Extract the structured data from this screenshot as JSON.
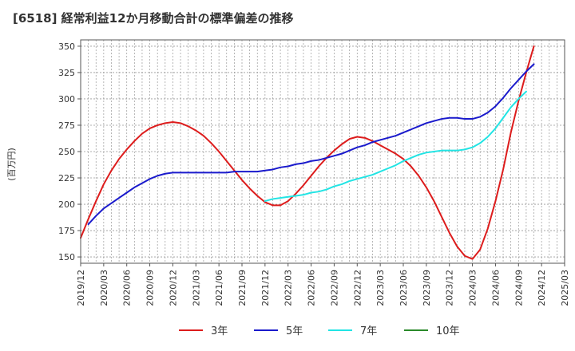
{
  "chart_data": {
    "type": "line",
    "title": "[6518]  経常利益12か月移動合計の標準偏差の推移",
    "ylabel": "(百万円)",
    "xlabel": "",
    "ylim": [
      144,
      356
    ],
    "xlim": [
      "2019-12",
      "2025-03"
    ],
    "y_ticks": [
      150,
      175,
      200,
      225,
      250,
      275,
      300,
      325,
      350
    ],
    "x_ticks": [
      "2019/12",
      "2020/03",
      "2020/06",
      "2020/09",
      "2020/12",
      "2021/03",
      "2021/06",
      "2021/09",
      "2021/12",
      "2022/03",
      "2022/06",
      "2022/09",
      "2022/12",
      "2023/03",
      "2023/06",
      "2023/09",
      "2023/12",
      "2024/03",
      "2024/06",
      "2024/09",
      "2024/12",
      "2025/03"
    ],
    "grid": true,
    "legend_position": "bottom",
    "series": [
      {
        "name": "3年",
        "color": "#dd1c1c",
        "points": [
          [
            "2019-12",
            168
          ],
          [
            "2020-01",
            186
          ],
          [
            "2020-02",
            203
          ],
          [
            "2020-03",
            219
          ],
          [
            "2020-04",
            232
          ],
          [
            "2020-05",
            243
          ],
          [
            "2020-06",
            252
          ],
          [
            "2020-07",
            260
          ],
          [
            "2020-08",
            267
          ],
          [
            "2020-09",
            272
          ],
          [
            "2020-10",
            275
          ],
          [
            "2020-11",
            277
          ],
          [
            "2020-12",
            278
          ],
          [
            "2021-01",
            277
          ],
          [
            "2021-02",
            274
          ],
          [
            "2021-03",
            270
          ],
          [
            "2021-04",
            265
          ],
          [
            "2021-05",
            258
          ],
          [
            "2021-06",
            250
          ],
          [
            "2021-07",
            241
          ],
          [
            "2021-08",
            232
          ],
          [
            "2021-09",
            223
          ],
          [
            "2021-10",
            215
          ],
          [
            "2021-11",
            208
          ],
          [
            "2021-12",
            202
          ],
          [
            "2022-01",
            199
          ],
          [
            "2022-02",
            199
          ],
          [
            "2022-03",
            203
          ],
          [
            "2022-04",
            210
          ],
          [
            "2022-05",
            218
          ],
          [
            "2022-06",
            227
          ],
          [
            "2022-07",
            236
          ],
          [
            "2022-08",
            244
          ],
          [
            "2022-09",
            251
          ],
          [
            "2022-10",
            257
          ],
          [
            "2022-11",
            262
          ],
          [
            "2022-12",
            264
          ],
          [
            "2023-01",
            263
          ],
          [
            "2023-02",
            260
          ],
          [
            "2023-03",
            256
          ],
          [
            "2023-04",
            252
          ],
          [
            "2023-05",
            248
          ],
          [
            "2023-06",
            243
          ],
          [
            "2023-07",
            236
          ],
          [
            "2023-08",
            227
          ],
          [
            "2023-09",
            216
          ],
          [
            "2023-10",
            203
          ],
          [
            "2023-11",
            188
          ],
          [
            "2023-12",
            173
          ],
          [
            "2024-01",
            160
          ],
          [
            "2024-02",
            151
          ],
          [
            "2024-03",
            148
          ],
          [
            "2024-04",
            157
          ],
          [
            "2024-05",
            177
          ],
          [
            "2024-06",
            203
          ],
          [
            "2024-07",
            233
          ],
          [
            "2024-08",
            268
          ],
          [
            "2024-09",
            298
          ],
          [
            "2024-10",
            325
          ],
          [
            "2024-11",
            350
          ]
        ]
      },
      {
        "name": "5年",
        "color": "#1a1acc",
        "points": [
          [
            "2020-01",
            181
          ],
          [
            "2020-02",
            189
          ],
          [
            "2020-03",
            196
          ],
          [
            "2020-04",
            201
          ],
          [
            "2020-05",
            206
          ],
          [
            "2020-06",
            211
          ],
          [
            "2020-07",
            216
          ],
          [
            "2020-08",
            220
          ],
          [
            "2020-09",
            224
          ],
          [
            "2020-10",
            227
          ],
          [
            "2020-11",
            229
          ],
          [
            "2020-12",
            230
          ],
          [
            "2021-01",
            230
          ],
          [
            "2021-02",
            230
          ],
          [
            "2021-03",
            230
          ],
          [
            "2021-04",
            230
          ],
          [
            "2021-05",
            230
          ],
          [
            "2021-06",
            230
          ],
          [
            "2021-07",
            230
          ],
          [
            "2021-08",
            231
          ],
          [
            "2021-09",
            231
          ],
          [
            "2021-10",
            231
          ],
          [
            "2021-11",
            231
          ],
          [
            "2021-12",
            232
          ],
          [
            "2022-01",
            233
          ],
          [
            "2022-02",
            235
          ],
          [
            "2022-03",
            236
          ],
          [
            "2022-04",
            238
          ],
          [
            "2022-05",
            239
          ],
          [
            "2022-06",
            241
          ],
          [
            "2022-07",
            242
          ],
          [
            "2022-08",
            244
          ],
          [
            "2022-09",
            246
          ],
          [
            "2022-10",
            248
          ],
          [
            "2022-11",
            251
          ],
          [
            "2022-12",
            254
          ],
          [
            "2023-01",
            256
          ],
          [
            "2023-02",
            259
          ],
          [
            "2023-03",
            261
          ],
          [
            "2023-04",
            263
          ],
          [
            "2023-05",
            265
          ],
          [
            "2023-06",
            268
          ],
          [
            "2023-07",
            271
          ],
          [
            "2023-08",
            274
          ],
          [
            "2023-09",
            277
          ],
          [
            "2023-10",
            279
          ],
          [
            "2023-11",
            281
          ],
          [
            "2023-12",
            282
          ],
          [
            "2024-01",
            282
          ],
          [
            "2024-02",
            281
          ],
          [
            "2024-03",
            281
          ],
          [
            "2024-04",
            283
          ],
          [
            "2024-05",
            287
          ],
          [
            "2024-06",
            293
          ],
          [
            "2024-07",
            301
          ],
          [
            "2024-08",
            310
          ],
          [
            "2024-09",
            318
          ],
          [
            "2024-10",
            326
          ],
          [
            "2024-11",
            333
          ]
        ]
      },
      {
        "name": "7年",
        "color": "#22e4e4",
        "points": [
          [
            "2021-12",
            203
          ],
          [
            "2022-01",
            205
          ],
          [
            "2022-02",
            206
          ],
          [
            "2022-03",
            207
          ],
          [
            "2022-04",
            208
          ],
          [
            "2022-05",
            209
          ],
          [
            "2022-06",
            211
          ],
          [
            "2022-07",
            212
          ],
          [
            "2022-08",
            214
          ],
          [
            "2022-09",
            217
          ],
          [
            "2022-10",
            219
          ],
          [
            "2022-11",
            222
          ],
          [
            "2022-12",
            224
          ],
          [
            "2023-01",
            226
          ],
          [
            "2023-02",
            228
          ],
          [
            "2023-03",
            231
          ],
          [
            "2023-04",
            234
          ],
          [
            "2023-05",
            237
          ],
          [
            "2023-06",
            241
          ],
          [
            "2023-07",
            244
          ],
          [
            "2023-08",
            247
          ],
          [
            "2023-09",
            249
          ],
          [
            "2023-10",
            250
          ],
          [
            "2023-11",
            251
          ],
          [
            "2023-12",
            251
          ],
          [
            "2024-01",
            251
          ],
          [
            "2024-02",
            252
          ],
          [
            "2024-03",
            254
          ],
          [
            "2024-04",
            258
          ],
          [
            "2024-05",
            264
          ],
          [
            "2024-06",
            272
          ],
          [
            "2024-07",
            282
          ],
          [
            "2024-08",
            292
          ],
          [
            "2024-09",
            300
          ],
          [
            "2024-10",
            307
          ]
        ]
      },
      {
        "name": "10年",
        "color": "#2a8a2a",
        "points": []
      }
    ]
  }
}
